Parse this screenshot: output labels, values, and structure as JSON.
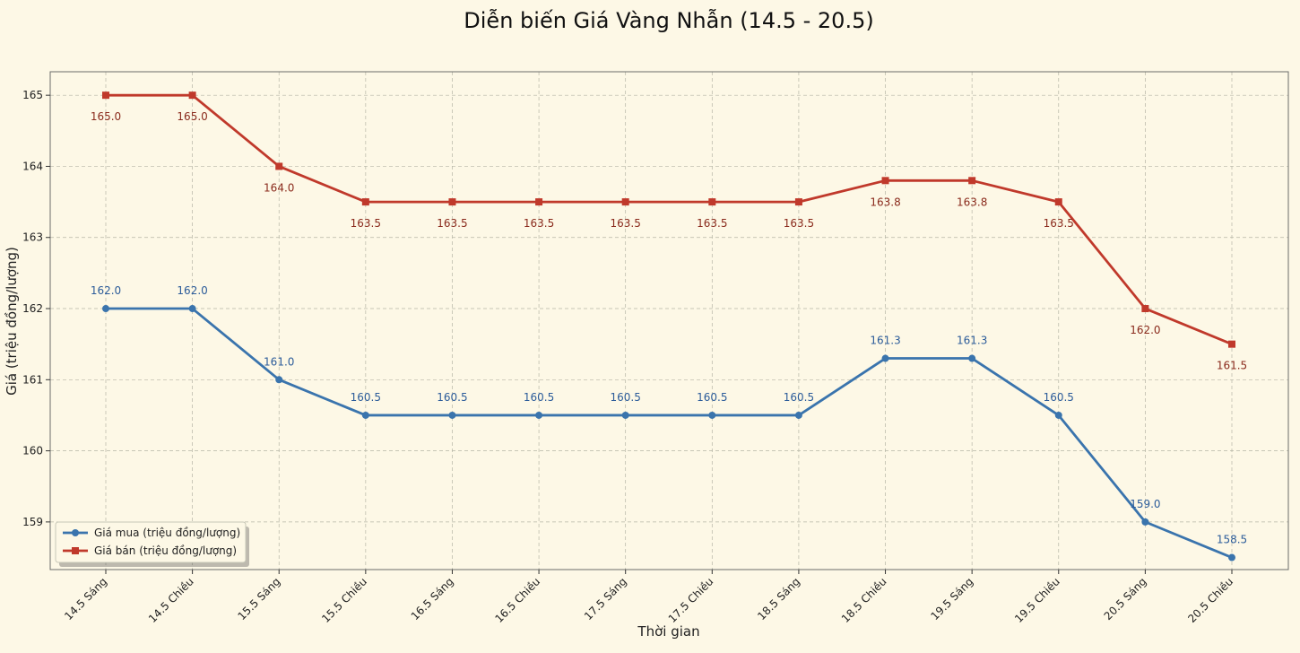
{
  "colors": {
    "background": "#fdf8e6",
    "buy": "#3a74ad",
    "sell": "#c0392b",
    "grid": "#b5b5a5",
    "frame": "#6b6b6b"
  },
  "chart_data": {
    "type": "line",
    "title": "Diễn biến Giá Vàng Nhẫn (14.5 - 20.5)",
    "xlabel": "Thời gian",
    "ylabel": "Giá (triệu đồng/lượng)",
    "ylim": [
      158.33,
      165.33
    ],
    "yticks": [
      159,
      160,
      161,
      162,
      163,
      164,
      165
    ],
    "grid": true,
    "legend_position": "bottom-left",
    "categories": [
      "14.5 Sáng",
      "14.5 Chiều",
      "15.5 Sáng",
      "15.5 Chiều",
      "16.5 Sáng",
      "16.5 Chiều",
      "17.5 Sáng",
      "17.5 Chiều",
      "18.5 Sáng",
      "18.5 Chiều",
      "19.5 Sáng",
      "19.5 Chiều",
      "20.5 Sáng",
      "20.5 Chiều"
    ],
    "series": [
      {
        "name": "Giá mua (triệu đồng/lượng)",
        "marker": "circle",
        "values": [
          162.0,
          162.0,
          161.0,
          160.5,
          160.5,
          160.5,
          160.5,
          160.5,
          160.5,
          161.3,
          161.3,
          160.5,
          159.0,
          158.5
        ],
        "labels": [
          "162.0",
          "162.0",
          "161.0",
          "160.5",
          "160.5",
          "160.5",
          "160.5",
          "160.5",
          "160.5",
          "161.3",
          "161.3",
          "160.5",
          "159.0",
          "158.5"
        ]
      },
      {
        "name": "Giá bán (triệu đồng/lượng)",
        "marker": "square",
        "values": [
          165.0,
          165.0,
          164.0,
          163.5,
          163.5,
          163.5,
          163.5,
          163.5,
          163.5,
          163.8,
          163.8,
          163.5,
          162.0,
          161.5
        ],
        "labels": [
          "165.0",
          "165.0",
          "164.0",
          "163.5",
          "163.5",
          "163.5",
          "163.5",
          "163.5",
          "163.5",
          "163.8",
          "163.8",
          "163.5",
          "162.0",
          "161.5"
        ]
      }
    ]
  }
}
